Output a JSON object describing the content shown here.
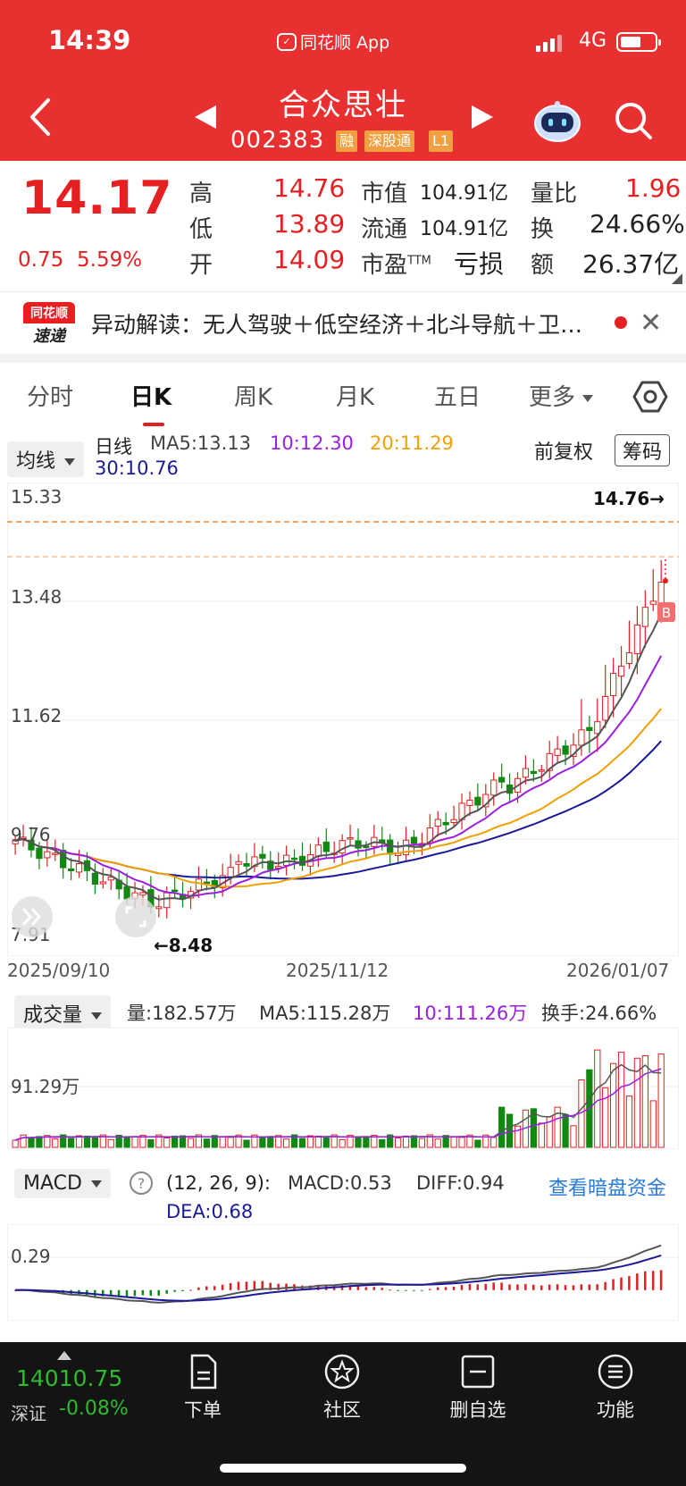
{
  "status": {
    "time": "14:39",
    "app_label": "同花顺 App",
    "network": "4G"
  },
  "header": {
    "stock_name": "合众思壮",
    "stock_code": "002383",
    "tags": [
      "融",
      "深股通",
      "L1"
    ]
  },
  "quote": {
    "price": "14.17",
    "change": "0.75",
    "change_pct": "5.59%",
    "high_label": "高",
    "high": "14.76",
    "low_label": "低",
    "low": "13.89",
    "open_label": "开",
    "open": "14.09",
    "mktcap_label": "市值",
    "mktcap": "104.91亿",
    "float_label": "流通",
    "float": "104.91亿",
    "pe_label": "市盈",
    "pe_sup": "TTM",
    "pe": "亏损",
    "vol_ratio_label": "量比",
    "vol_ratio": "1.96",
    "turnover_label": "换",
    "turnover": "24.66%",
    "amount_label": "额",
    "amount": "26.37亿"
  },
  "news": {
    "logo_top": "同花顺",
    "logo_bottom": "速递",
    "text": "异动解读：无人驾驶＋低空经济＋北斗导航＋卫星导航概念"
  },
  "tabs": [
    "分时",
    "日K",
    "周K",
    "月K",
    "五日",
    "更多"
  ],
  "active_tab": 1,
  "kline": {
    "ma_button": "均线",
    "period_label": "日线",
    "ma5": "MA5:13.13",
    "ma10": "10:12.30",
    "ma20": "20:11.29",
    "ma30": "30:10.76",
    "adjust_label": "前复权",
    "chip_label": "筹码",
    "y_labels": [
      "15.33",
      "13.48",
      "11.62",
      "9.76",
      "7.91"
    ],
    "max_marker": "14.76→",
    "min_marker": "←8.48",
    "buy_marker": "B",
    "dates": [
      "2025/09/10",
      "2025/11/12",
      "2026/01/07"
    ],
    "colors": {
      "up": "#e02020",
      "down": "#118811",
      "ma5": "#555555",
      "ma10": "#9a1fe0",
      "ma20": "#f0a000",
      "ma30": "#1a1a9a"
    }
  },
  "volume": {
    "button": "成交量",
    "vol": "量:182.57万",
    "ma5": "MA5:115.28万",
    "ma10": "10:111.26万",
    "turnover": "换手:24.66%",
    "y_label": "91.29万"
  },
  "macd": {
    "button": "MACD",
    "params": "(12, 26, 9):",
    "macd": "MACD:0.53",
    "diff": "DIFF:0.94",
    "dea": "DEA:0.68",
    "link": "查看暗盘资金",
    "y_label": "0.29"
  },
  "bottom": {
    "index_value": "14010.75",
    "index_name": "深证",
    "index_change": "-0.08%",
    "nav": [
      "下单",
      "社区",
      "删自选",
      "功能"
    ]
  }
}
